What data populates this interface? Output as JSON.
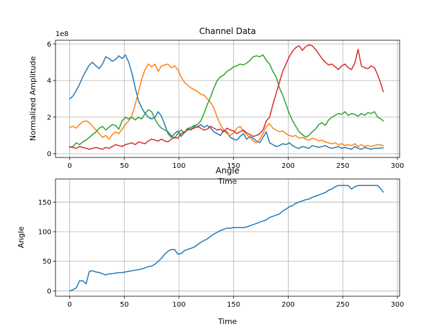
{
  "chart_data": [
    {
      "type": "line",
      "title": "Channel Data",
      "xlabel": "Time",
      "ylabel": "Normalized Amplitude",
      "y_offset_label": "1e8",
      "xlim": [
        -13,
        302
      ],
      "ylim": [
        -0.2,
        6.2
      ],
      "x_ticks": [
        0,
        50,
        100,
        150,
        200,
        250,
        300
      ],
      "y_ticks": [
        0,
        2,
        4,
        6
      ],
      "grid": true,
      "series": [
        {
          "color": "#1f77b4",
          "x": [
            0,
            3,
            6,
            9,
            12,
            15,
            18,
            21,
            24,
            27,
            30,
            33,
            36,
            39,
            42,
            45,
            48,
            51,
            54,
            57,
            60,
            63,
            66,
            69,
            72,
            75,
            78,
            81,
            84,
            87,
            90,
            93,
            96,
            99,
            102,
            105,
            108,
            111,
            114,
            117,
            120,
            123,
            126,
            129,
            132,
            135,
            138,
            141,
            144,
            147,
            150,
            153,
            156,
            159,
            162,
            165,
            168,
            171,
            174,
            177,
            180,
            183,
            186,
            189,
            192,
            195,
            198,
            201,
            204,
            207,
            210,
            213,
            216,
            219,
            222,
            225,
            228,
            231,
            234,
            237,
            240,
            243,
            246,
            249,
            252,
            255,
            258,
            261,
            264,
            267,
            270,
            273,
            276,
            279,
            282,
            285,
            287
          ],
          "y": [
            3.0,
            3.15,
            3.45,
            3.8,
            4.2,
            4.55,
            4.85,
            5.0,
            4.8,
            4.65,
            4.9,
            5.3,
            5.2,
            5.05,
            5.15,
            5.35,
            5.2,
            5.4,
            5.0,
            4.4,
            3.6,
            2.9,
            2.5,
            2.2,
            2.0,
            1.9,
            2.0,
            2.3,
            2.05,
            1.6,
            1.1,
            0.9,
            1.1,
            1.25,
            0.95,
            1.15,
            1.4,
            1.3,
            1.5,
            1.45,
            1.6,
            1.45,
            1.55,
            1.4,
            1.2,
            1.1,
            1.0,
            1.3,
            1.2,
            0.9,
            0.8,
            0.75,
            0.95,
            1.1,
            0.8,
            0.95,
            0.85,
            0.7,
            0.6,
            0.9,
            1.2,
            0.6,
            0.5,
            0.4,
            0.45,
            0.55,
            0.5,
            0.6,
            0.45,
            0.35,
            0.3,
            0.4,
            0.35,
            0.3,
            0.45,
            0.4,
            0.35,
            0.4,
            0.45,
            0.35,
            0.3,
            0.35,
            0.4,
            0.3,
            0.35,
            0.3,
            0.25,
            0.4,
            0.3,
            0.25,
            0.35,
            0.3,
            0.25,
            0.3,
            0.3,
            0.32,
            0.32
          ]
        },
        {
          "color": "#ff7f0e",
          "x": [
            0,
            3,
            6,
            9,
            12,
            15,
            18,
            21,
            24,
            27,
            30,
            33,
            36,
            39,
            42,
            45,
            48,
            51,
            54,
            57,
            60,
            63,
            66,
            69,
            72,
            75,
            78,
            81,
            84,
            87,
            90,
            93,
            96,
            99,
            102,
            105,
            108,
            111,
            114,
            117,
            120,
            123,
            126,
            129,
            132,
            135,
            138,
            141,
            144,
            147,
            150,
            153,
            156,
            159,
            162,
            165,
            168,
            171,
            174,
            177,
            180,
            183,
            186,
            189,
            192,
            195,
            198,
            201,
            204,
            207,
            210,
            213,
            216,
            219,
            222,
            225,
            228,
            231,
            234,
            237,
            240,
            243,
            246,
            249,
            252,
            255,
            258,
            261,
            264,
            267,
            270,
            273,
            276,
            279,
            282,
            285,
            287
          ],
          "y": [
            1.45,
            1.5,
            1.4,
            1.6,
            1.75,
            1.8,
            1.7,
            1.5,
            1.3,
            1.1,
            0.9,
            1.0,
            0.8,
            1.05,
            1.2,
            1.1,
            1.35,
            1.6,
            1.8,
            2.1,
            2.7,
            3.4,
            4.1,
            4.6,
            4.9,
            4.75,
            4.9,
            4.5,
            4.8,
            4.85,
            4.9,
            4.7,
            4.8,
            4.6,
            4.2,
            3.9,
            3.75,
            3.6,
            3.5,
            3.4,
            3.25,
            3.2,
            3.0,
            2.8,
            2.5,
            2.0,
            1.6,
            1.3,
            1.1,
            1.0,
            1.15,
            1.4,
            1.5,
            1.25,
            1.05,
            0.9,
            0.7,
            0.6,
            0.8,
            1.1,
            1.5,
            1.65,
            1.4,
            1.3,
            1.2,
            1.25,
            1.1,
            1.0,
            0.95,
            1.0,
            0.85,
            0.9,
            0.8,
            0.75,
            0.85,
            0.8,
            0.7,
            0.75,
            0.65,
            0.6,
            0.55,
            0.6,
            0.5,
            0.55,
            0.45,
            0.5,
            0.45,
            0.55,
            0.4,
            0.5,
            0.4,
            0.45,
            0.4,
            0.45,
            0.5,
            0.48,
            0.45
          ]
        },
        {
          "color": "#2ca02c",
          "x": [
            0,
            3,
            6,
            9,
            12,
            15,
            18,
            21,
            24,
            27,
            30,
            33,
            36,
            39,
            42,
            45,
            48,
            51,
            54,
            57,
            60,
            63,
            66,
            69,
            72,
            75,
            78,
            81,
            84,
            87,
            90,
            93,
            96,
            99,
            102,
            105,
            108,
            111,
            114,
            117,
            120,
            123,
            126,
            129,
            132,
            135,
            138,
            141,
            144,
            147,
            150,
            153,
            156,
            159,
            162,
            165,
            168,
            171,
            174,
            177,
            180,
            183,
            186,
            189,
            192,
            195,
            198,
            201,
            204,
            207,
            210,
            213,
            216,
            219,
            222,
            225,
            228,
            231,
            234,
            237,
            240,
            243,
            246,
            249,
            252,
            255,
            258,
            261,
            264,
            267,
            270,
            273,
            276,
            279,
            282,
            285,
            287
          ],
          "y": [
            0.35,
            0.4,
            0.6,
            0.5,
            0.65,
            0.75,
            0.9,
            1.05,
            1.2,
            1.4,
            1.5,
            1.3,
            1.45,
            1.6,
            1.55,
            1.35,
            1.8,
            2.0,
            1.9,
            2.0,
            1.85,
            2.0,
            1.9,
            2.2,
            2.4,
            2.3,
            1.9,
            1.6,
            1.4,
            1.3,
            1.2,
            1.0,
            0.85,
            1.1,
            1.3,
            1.15,
            1.35,
            1.45,
            1.55,
            1.6,
            1.8,
            2.2,
            2.7,
            3.1,
            3.6,
            4.0,
            4.2,
            4.3,
            4.5,
            4.6,
            4.75,
            4.8,
            4.9,
            4.85,
            4.95,
            5.1,
            5.3,
            5.35,
            5.3,
            5.4,
            5.1,
            4.9,
            4.5,
            4.2,
            3.6,
            3.2,
            2.7,
            2.2,
            1.8,
            1.5,
            1.2,
            1.05,
            0.9,
            1.0,
            1.2,
            1.35,
            1.6,
            1.7,
            1.55,
            1.85,
            2.0,
            2.1,
            2.2,
            2.15,
            2.3,
            2.1,
            2.2,
            2.15,
            2.05,
            2.2,
            2.1,
            2.25,
            2.2,
            2.3,
            2.0,
            1.9,
            1.8
          ]
        },
        {
          "color": "#d62728",
          "x": [
            0,
            3,
            6,
            9,
            12,
            15,
            18,
            21,
            24,
            27,
            30,
            33,
            36,
            39,
            42,
            45,
            48,
            51,
            54,
            57,
            60,
            63,
            66,
            69,
            72,
            75,
            78,
            81,
            84,
            87,
            90,
            93,
            96,
            99,
            102,
            105,
            108,
            111,
            114,
            117,
            120,
            123,
            126,
            129,
            132,
            135,
            138,
            141,
            144,
            147,
            150,
            153,
            156,
            159,
            162,
            165,
            168,
            171,
            174,
            177,
            180,
            183,
            186,
            189,
            192,
            195,
            198,
            201,
            204,
            207,
            210,
            213,
            216,
            219,
            222,
            225,
            228,
            231,
            234,
            237,
            240,
            243,
            246,
            249,
            252,
            255,
            258,
            261,
            264,
            267,
            270,
            273,
            276,
            279,
            282,
            285,
            287
          ],
          "y": [
            0.4,
            0.35,
            0.3,
            0.4,
            0.35,
            0.3,
            0.25,
            0.3,
            0.35,
            0.3,
            0.25,
            0.35,
            0.3,
            0.4,
            0.5,
            0.45,
            0.4,
            0.5,
            0.55,
            0.6,
            0.5,
            0.65,
            0.6,
            0.55,
            0.7,
            0.8,
            0.75,
            0.7,
            0.8,
            0.7,
            0.65,
            0.8,
            0.9,
            0.85,
            1.1,
            1.2,
            1.3,
            1.35,
            1.4,
            1.5,
            1.4,
            1.3,
            1.35,
            1.5,
            1.4,
            1.3,
            1.35,
            1.2,
            1.4,
            1.3,
            1.25,
            1.1,
            1.2,
            1.3,
            1.15,
            1.05,
            0.95,
            1.0,
            1.1,
            1.3,
            1.8,
            2.0,
            2.7,
            3.3,
            3.9,
            4.5,
            4.9,
            5.3,
            5.6,
            5.8,
            5.9,
            5.65,
            5.85,
            5.95,
            5.9,
            5.7,
            5.45,
            5.2,
            5.0,
            4.85,
            4.9,
            4.75,
            4.6,
            4.8,
            4.9,
            4.7,
            4.6,
            4.95,
            5.7,
            4.8,
            4.7,
            4.65,
            4.8,
            4.7,
            4.3,
            3.8,
            3.4
          ]
        }
      ]
    },
    {
      "type": "line",
      "title": "Angle",
      "xlabel": "Time",
      "ylabel": "Angle",
      "xlim": [
        -13,
        302
      ],
      "ylim": [
        -9,
        189
      ],
      "x_ticks": [
        0,
        50,
        100,
        150,
        200,
        250,
        300
      ],
      "y_ticks": [
        0,
        50,
        100,
        150
      ],
      "grid": true,
      "series": [
        {
          "color": "#1f77b4",
          "x": [
            0,
            3,
            6,
            9,
            12,
            15,
            18,
            21,
            24,
            27,
            30,
            33,
            36,
            39,
            42,
            45,
            48,
            51,
            54,
            57,
            60,
            63,
            66,
            69,
            72,
            75,
            78,
            81,
            84,
            87,
            90,
            93,
            96,
            99,
            102,
            105,
            108,
            111,
            114,
            117,
            120,
            123,
            126,
            129,
            132,
            135,
            138,
            141,
            144,
            147,
            150,
            153,
            156,
            159,
            162,
            165,
            168,
            171,
            174,
            177,
            180,
            183,
            186,
            189,
            192,
            195,
            198,
            201,
            204,
            207,
            210,
            213,
            216,
            219,
            222,
            225,
            228,
            231,
            234,
            237,
            240,
            243,
            246,
            249,
            252,
            255,
            258,
            261,
            264,
            267,
            270,
            273,
            276,
            279,
            282,
            285,
            287
          ],
          "y": [
            0,
            2,
            5,
            17,
            17,
            12,
            33,
            34,
            32,
            31,
            29,
            27,
            29,
            29,
            30,
            31,
            31,
            32,
            33,
            34,
            35,
            36,
            37,
            39,
            41,
            42,
            45,
            50,
            55,
            62,
            67,
            70,
            70,
            62,
            63,
            68,
            70,
            72,
            74,
            78,
            82,
            85,
            88,
            92,
            96,
            99,
            102,
            104,
            106,
            106,
            107,
            107,
            107,
            107,
            108,
            110,
            112,
            114,
            116,
            118,
            120,
            124,
            126,
            128,
            130,
            135,
            138,
            142,
            144,
            148,
            150,
            152,
            154,
            155,
            158,
            160,
            162,
            164,
            166,
            170,
            172,
            176,
            178,
            178,
            178,
            178,
            172,
            176,
            178,
            178,
            178,
            178,
            178,
            178,
            178,
            172,
            167
          ]
        }
      ]
    }
  ]
}
